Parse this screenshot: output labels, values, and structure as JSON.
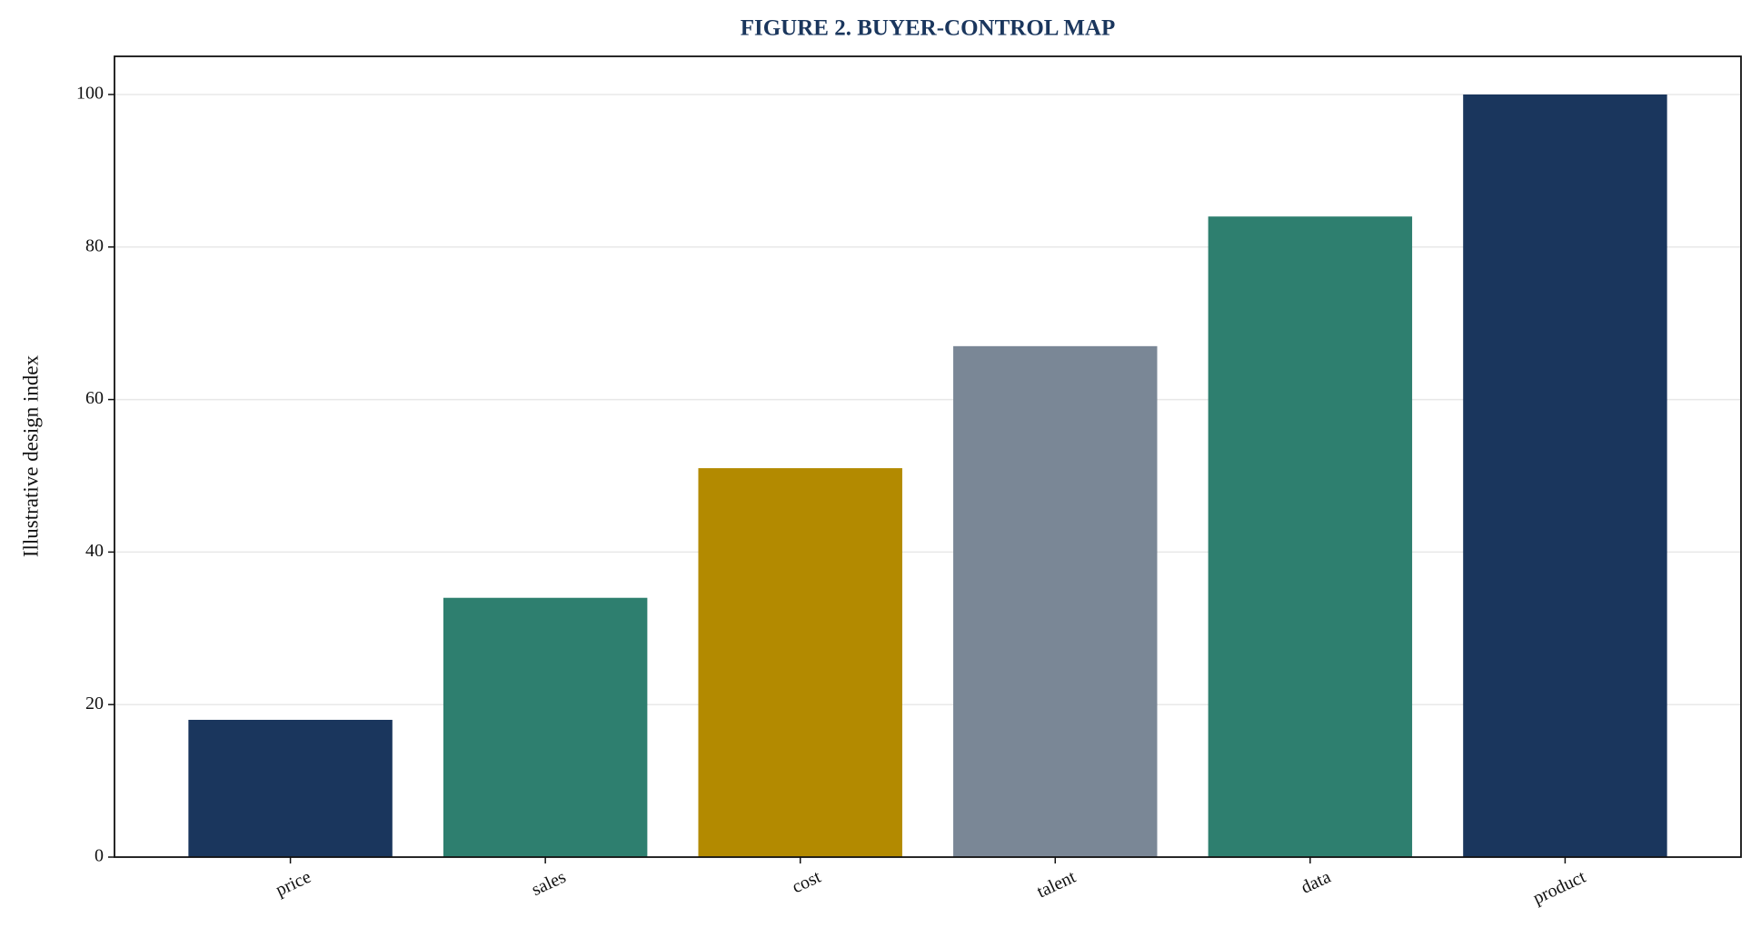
{
  "chart_data": {
    "type": "bar",
    "title": "FIGURE 2. BUYER-CONTROL MAP",
    "y_label": "Illustrative design index",
    "categories": [
      "price",
      "sales",
      "cost",
      "talent",
      "data",
      "product"
    ],
    "values": [
      18,
      34,
      51,
      67,
      84,
      100
    ],
    "colors": [
      "#1a365d",
      "#2e7f6f",
      "#b38a00",
      "#7a8796",
      "#2e7f6f",
      "#1a365d"
    ],
    "ylim": [
      0,
      105
    ],
    "yticks": [
      0,
      20,
      40,
      60,
      80,
      100
    ],
    "grid": true
  }
}
